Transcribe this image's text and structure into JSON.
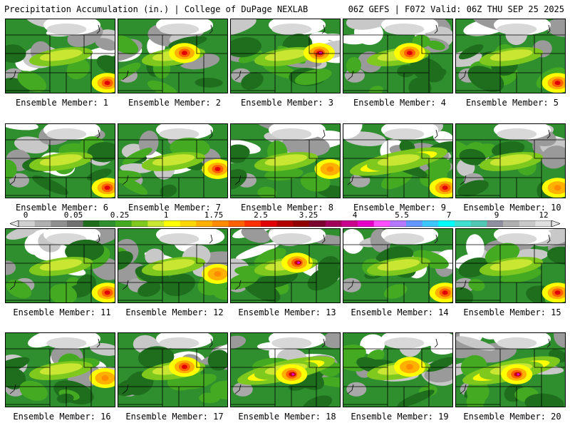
{
  "header": {
    "left_title": "Precipitation Accumulation (in.) | College of DuPage NEXLAB",
    "right_title": "06Z GEFS | F072 Valid: 06Z THU SEP 25 2025"
  },
  "panels": [
    {
      "label": "Ensemble Member: 1",
      "pattern": "moderate",
      "hot": "se"
    },
    {
      "label": "Ensemble Member: 2",
      "pattern": "moderate",
      "hot": "center"
    },
    {
      "label": "Ensemble Member: 3",
      "pattern": "heavy",
      "hot": "center-east"
    },
    {
      "label": "Ensemble Member: 4",
      "pattern": "moderate",
      "hot": "center"
    },
    {
      "label": "Ensemble Member: 5",
      "pattern": "moderate",
      "hot": "se"
    },
    {
      "label": "Ensemble Member: 6",
      "pattern": "moderate",
      "hot": "se"
    },
    {
      "label": "Ensemble Member: 7",
      "pattern": "moderate",
      "hot": "east"
    },
    {
      "label": "Ensemble Member: 8",
      "pattern": "light",
      "hot": "east"
    },
    {
      "label": "Ensemble Member: 9",
      "pattern": "band",
      "hot": "se"
    },
    {
      "label": "Ensemble Member: 10",
      "pattern": "light",
      "hot": "se"
    },
    {
      "label": "Ensemble Member: 11",
      "pattern": "moderate",
      "hot": "se"
    },
    {
      "label": "Ensemble Member: 12",
      "pattern": "light",
      "hot": "east"
    },
    {
      "label": "Ensemble Member: 13",
      "pattern": "heavy",
      "hot": "center"
    },
    {
      "label": "Ensemble Member: 14",
      "pattern": "moderate",
      "hot": "se"
    },
    {
      "label": "Ensemble Member: 15",
      "pattern": "moderate",
      "hot": "se"
    },
    {
      "label": "Ensemble Member: 16",
      "pattern": "light",
      "hot": "east"
    },
    {
      "label": "Ensemble Member: 17",
      "pattern": "moderate",
      "hot": "center"
    },
    {
      "label": "Ensemble Member: 18",
      "pattern": "heavy",
      "hot": "band"
    },
    {
      "label": "Ensemble Member: 19",
      "pattern": "light",
      "hot": "center"
    },
    {
      "label": "Ensemble Member: 20",
      "pattern": "heavy",
      "hot": "band"
    }
  ],
  "colorbar": {
    "ticks": [
      "0",
      "0.05",
      "0.25",
      "1",
      "1.75",
      "2.5",
      "3.25",
      "4",
      "5.5",
      "7",
      "9",
      "12"
    ],
    "colors": [
      "#d0d0d0",
      "#b0b0b0",
      "#909090",
      "#707070",
      "#1e6e1e",
      "#2f8f2f",
      "#44aa22",
      "#7fc91e",
      "#c8e632",
      "#ffff00",
      "#ffd700",
      "#ffb000",
      "#ff8c00",
      "#ff6000",
      "#ff3000",
      "#e00000",
      "#b00000",
      "#900000",
      "#7a0030",
      "#a0005a",
      "#c8008c",
      "#e600c8",
      "#ff50ff",
      "#b478ff",
      "#6496ff",
      "#3cc8ff",
      "#00ffff",
      "#40e0d0",
      "#50c8b4",
      "#9090a0",
      "#b0b0b0",
      "#c8c8c8",
      "#e0e0e0"
    ]
  }
}
